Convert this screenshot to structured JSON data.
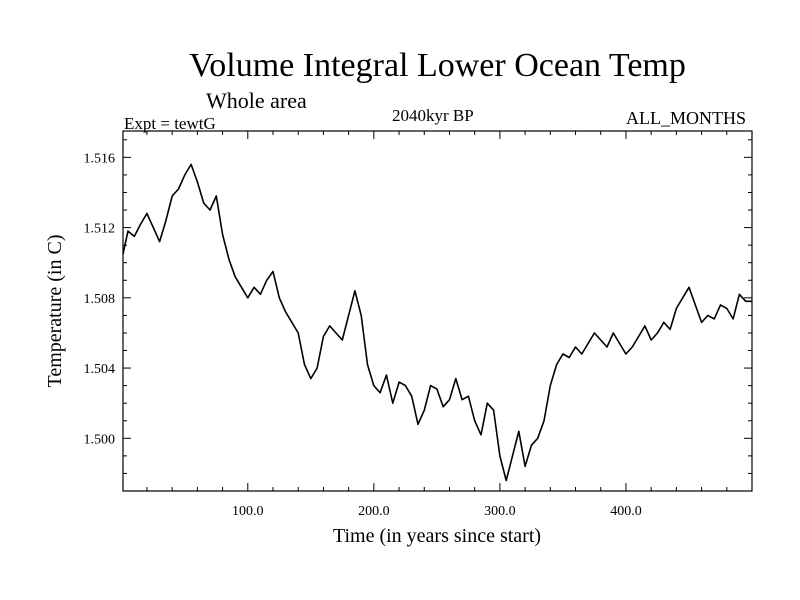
{
  "chart_data": {
    "type": "line",
    "title": "Volume Integral Lower Ocean Temp",
    "subtitle": "Whole area",
    "experiment": "Expt = tewtG",
    "period": "2040kyr BP",
    "months": "ALL_MONTHS",
    "xlabel": "Time (in years since start)",
    "ylabel": "Temperature (in C)",
    "xlim": [
      1,
      500
    ],
    "ylim": [
      1.497,
      1.5175
    ],
    "xticks_major": [
      100,
      200,
      300,
      400
    ],
    "xtick_labels": [
      "100.0",
      "200.0",
      "300.0",
      "400.0"
    ],
    "yticks_major": [
      1.5,
      1.504,
      1.508,
      1.512,
      1.516
    ],
    "ytick_labels": [
      "1.500",
      "1.504",
      "1.508",
      "1.512",
      "1.516"
    ],
    "series": [
      {
        "name": "Temperature",
        "x": [
          1,
          5,
          10,
          15,
          20,
          25,
          30,
          35,
          40,
          45,
          50,
          55,
          60,
          65,
          70,
          75,
          80,
          85,
          90,
          95,
          100,
          105,
          110,
          115,
          120,
          125,
          130,
          135,
          140,
          145,
          150,
          155,
          160,
          165,
          170,
          175,
          180,
          185,
          190,
          195,
          200,
          205,
          210,
          215,
          220,
          225,
          230,
          235,
          240,
          245,
          250,
          255,
          260,
          265,
          270,
          275,
          280,
          285,
          290,
          295,
          300,
          305,
          310,
          315,
          320,
          325,
          330,
          335,
          340,
          345,
          350,
          355,
          360,
          365,
          370,
          375,
          380,
          385,
          390,
          395,
          400,
          405,
          410,
          415,
          420,
          425,
          430,
          435,
          440,
          445,
          450,
          455,
          460,
          465,
          470,
          475,
          480,
          485,
          490,
          495,
          500
        ],
        "values": [
          1.5105,
          1.5118,
          1.5115,
          1.5122,
          1.5128,
          1.512,
          1.5112,
          1.5124,
          1.5138,
          1.5142,
          1.515,
          1.5156,
          1.5146,
          1.5134,
          1.513,
          1.5138,
          1.5116,
          1.5102,
          1.5092,
          1.5086,
          1.508,
          1.5086,
          1.5082,
          1.509,
          1.5095,
          1.508,
          1.5072,
          1.5066,
          1.506,
          1.5042,
          1.5034,
          1.504,
          1.5058,
          1.5064,
          1.506,
          1.5056,
          1.507,
          1.5084,
          1.507,
          1.5042,
          1.503,
          1.5026,
          1.5036,
          1.502,
          1.5032,
          1.503,
          1.5024,
          1.5008,
          1.5016,
          1.503,
          1.5028,
          1.5018,
          1.5022,
          1.5034,
          1.5022,
          1.5024,
          1.501,
          1.5002,
          1.502,
          1.5016,
          1.499,
          1.4976,
          1.499,
          1.5004,
          1.4984,
          1.4996,
          1.5,
          1.501,
          1.503,
          1.5042,
          1.5048,
          1.5046,
          1.5052,
          1.5048,
          1.5054,
          1.506,
          1.5056,
          1.5052,
          1.506,
          1.5054,
          1.5048,
          1.5052,
          1.5058,
          1.5064,
          1.5056,
          1.506,
          1.5066,
          1.5062,
          1.5074,
          1.508,
          1.5086,
          1.5076,
          1.5066,
          1.507,
          1.5068,
          1.5076,
          1.5074,
          1.5068,
          1.5082,
          1.5078,
          1.5078
        ]
      }
    ]
  }
}
